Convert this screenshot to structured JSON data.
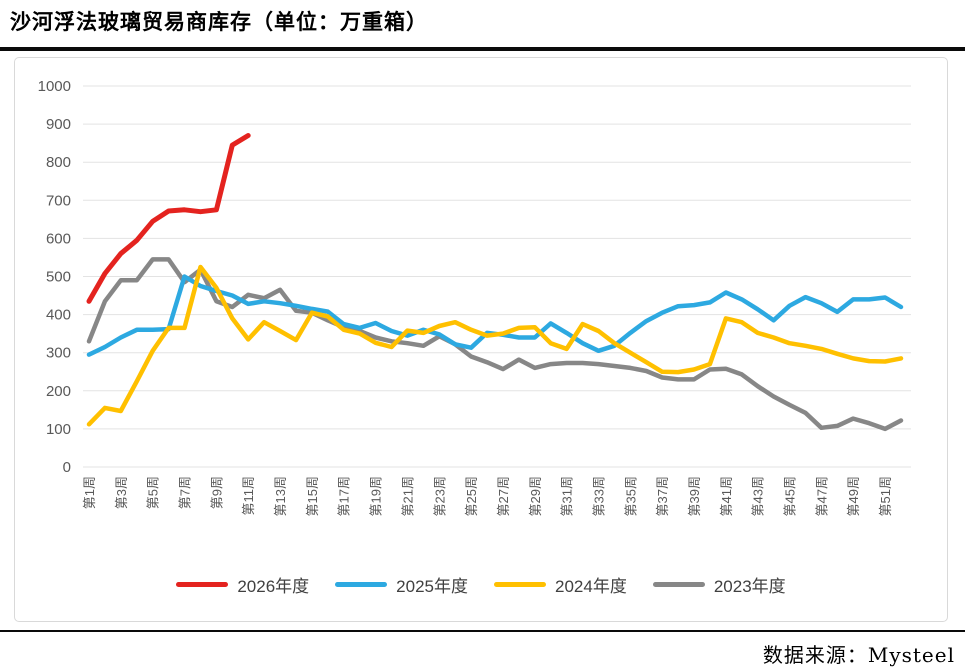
{
  "page": {
    "title": "沙河浮法玻璃贸易商库存（单位：万重箱）",
    "source_note": "数据来源：Mysteel"
  },
  "colors": {
    "series_2026": "#e4231f",
    "series_2025": "#2da9e1",
    "series_2024": "#ffc000",
    "series_2023": "#878787",
    "gridline": "#e3e3e3",
    "axis_text": "#595959",
    "legend_text": "#404040",
    "rule": "#0a0a0a"
  },
  "chart_data": {
    "type": "line",
    "title": "沙河浮法玻璃贸易商库存（单位：万重箱）",
    "grid": true,
    "legend_position": "bottom",
    "x_axis": {
      "weeks_total": 52,
      "tick_labels": [
        "第1周",
        "第3周",
        "第5周",
        "第7周",
        "第9周",
        "第11周",
        "第13周",
        "第15周",
        "第17周",
        "第19周",
        "第21周",
        "第23周",
        "第25周",
        "第27周",
        "第29周",
        "第31周",
        "第33周",
        "第35周",
        "第37周",
        "第39周",
        "第41周",
        "第43周",
        "第45周",
        "第47周",
        "第49周",
        "第51周"
      ]
    },
    "y_axis": {
      "min": 0,
      "max": 1000,
      "step": 100,
      "tick_labels": [
        "0",
        "100",
        "200",
        "300",
        "400",
        "500",
        "600",
        "700",
        "800",
        "900",
        "1000"
      ]
    },
    "series": [
      {
        "name": "2026年度",
        "color": "#e4231f",
        "stroke_width": 5,
        "start_week": 1,
        "values": [
          435,
          508,
          560,
          595,
          645,
          672,
          675,
          670,
          675,
          845,
          870
        ]
      },
      {
        "name": "2025年度",
        "color": "#2da9e1",
        "stroke_width": 4.5,
        "start_week": 1,
        "values": [
          295,
          315,
          340,
          360,
          360,
          362,
          500,
          475,
          462,
          450,
          428,
          435,
          430,
          423,
          415,
          408,
          375,
          365,
          378,
          357,
          345,
          360,
          348,
          322,
          313,
          352,
          347,
          340,
          340,
          377,
          352,
          325,
          305,
          318,
          352,
          383,
          405,
          422,
          425,
          432,
          458,
          440,
          414,
          385,
          423,
          446,
          430,
          407,
          440,
          440,
          445,
          420
        ]
      },
      {
        "name": "2024年度",
        "color": "#ffc000",
        "stroke_width": 4.5,
        "start_week": 1,
        "values": [
          112,
          155,
          147,
          225,
          305,
          365,
          365,
          525,
          470,
          390,
          335,
          380,
          357,
          333,
          405,
          395,
          360,
          350,
          326,
          315,
          358,
          352,
          370,
          380,
          360,
          345,
          350,
          365,
          367,
          325,
          310,
          375,
          357,
          325,
          300,
          275,
          250,
          249,
          256,
          270,
          390,
          380,
          352,
          340,
          325,
          318,
          310,
          297,
          285,
          278,
          277,
          285
        ]
      },
      {
        "name": "2023年度",
        "color": "#878787",
        "stroke_width": 4.5,
        "start_week": 1,
        "values": [
          330,
          435,
          490,
          490,
          545,
          545,
          485,
          518,
          435,
          420,
          452,
          443,
          465,
          410,
          405,
          385,
          367,
          357,
          340,
          330,
          325,
          318,
          343,
          322,
          290,
          275,
          257,
          282,
          260,
          270,
          273,
          273,
          270,
          265,
          260,
          252,
          235,
          230,
          230,
          256,
          258,
          243,
          212,
          185,
          163,
          142,
          103,
          108,
          127,
          115,
          100,
          122
        ]
      }
    ]
  }
}
